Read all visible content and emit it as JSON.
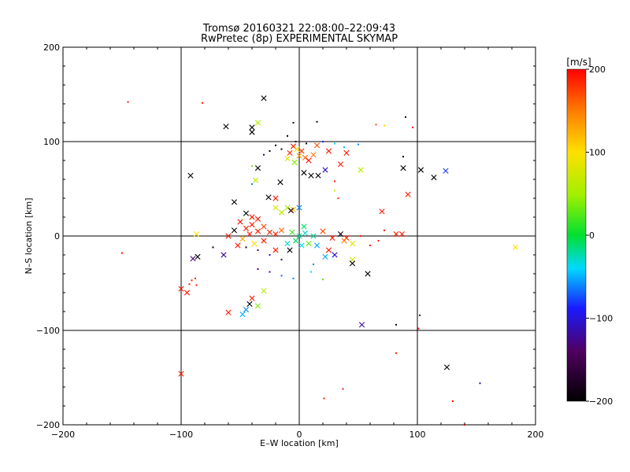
{
  "chart_data": {
    "type": "scatter",
    "title": "Tromsø 20160321 22:08:00–22:09:43",
    "subtitle": "RwPretec (8p) EXPERIMENTAL SKYMAP",
    "xlabel": "E–W location [km]",
    "ylabel": "N–S location [km]",
    "xlim": [
      -200,
      200
    ],
    "ylim": [
      -200,
      200
    ],
    "xticks": [
      -200,
      -100,
      0,
      100,
      200
    ],
    "yticks": [
      -200,
      -100,
      0,
      100,
      200
    ],
    "xtick_labels": [
      "−200",
      "−100",
      "0",
      "100",
      "200"
    ],
    "ytick_labels": [
      "−200",
      "−100",
      "0",
      "100",
      "200"
    ],
    "grid": true,
    "colorbar": {
      "label": "[m/s]",
      "range": [
        -200,
        200
      ],
      "ticks": [
        200,
        100,
        0,
        -100,
        -200
      ],
      "tick_labels": [
        "200",
        "100",
        "0",
        "−100",
        "−200"
      ],
      "colormap": "black-purple-blue-cyan-green-yellow-red"
    },
    "points": [
      {
        "x": -145,
        "y": 142,
        "v": 190,
        "m": "dot"
      },
      {
        "x": -82,
        "y": 141,
        "v": 190,
        "m": "dot"
      },
      {
        "x": -150,
        "y": -18,
        "v": 190,
        "m": "dot"
      },
      {
        "x": -30,
        "y": 146,
        "v": -200,
        "m": "x"
      },
      {
        "x": -62,
        "y": 116,
        "v": -200,
        "m": "x"
      },
      {
        "x": -40,
        "y": 115,
        "v": -200,
        "m": "x"
      },
      {
        "x": -40,
        "y": 110,
        "v": -200,
        "m": "x"
      },
      {
        "x": -35,
        "y": 120,
        "v": 60,
        "m": "x"
      },
      {
        "x": 15,
        "y": 121,
        "v": -200,
        "m": "dot"
      },
      {
        "x": -5,
        "y": 120,
        "v": -180,
        "m": "dot"
      },
      {
        "x": 65,
        "y": 118,
        "v": 170,
        "m": "dot"
      },
      {
        "x": 72,
        "y": 117,
        "v": 110,
        "m": "dot"
      },
      {
        "x": 96,
        "y": 115,
        "v": 190,
        "m": "dot"
      },
      {
        "x": 90,
        "y": 126,
        "v": -200,
        "m": "dot"
      },
      {
        "x": -10,
        "y": 106,
        "v": -200,
        "m": "dot"
      },
      {
        "x": -3,
        "y": 100,
        "v": -180,
        "m": "dot"
      },
      {
        "x": 6,
        "y": 98,
        "v": -200,
        "m": "dot"
      },
      {
        "x": -20,
        "y": 96,
        "v": -200,
        "m": "dot"
      },
      {
        "x": 20,
        "y": 100,
        "v": -90,
        "m": "dot"
      },
      {
        "x": 30,
        "y": 98,
        "v": -40,
        "m": "dot"
      },
      {
        "x": -5,
        "y": 95,
        "v": 190,
        "m": "x"
      },
      {
        "x": 15,
        "y": 96,
        "v": 170,
        "m": "x"
      },
      {
        "x": -15,
        "y": 92,
        "v": -200,
        "m": "dot"
      },
      {
        "x": 38,
        "y": 94,
        "v": -50,
        "m": "dot"
      },
      {
        "x": 50,
        "y": 97,
        "v": -60,
        "m": "dot"
      },
      {
        "x": 2,
        "y": 90,
        "v": 180,
        "m": "x"
      },
      {
        "x": -8,
        "y": 88,
        "v": 180,
        "m": "x"
      },
      {
        "x": 0,
        "y": 85,
        "v": 130,
        "m": "x"
      },
      {
        "x": 5,
        "y": 83,
        "v": 160,
        "m": "x"
      },
      {
        "x": -10,
        "y": 82,
        "v": 80,
        "m": "x"
      },
      {
        "x": 8,
        "y": 80,
        "v": 190,
        "m": "x"
      },
      {
        "x": -4,
        "y": 78,
        "v": 40,
        "m": "x"
      },
      {
        "x": 12,
        "y": 86,
        "v": 150,
        "m": "x"
      },
      {
        "x": -2,
        "y": 92,
        "v": 100,
        "m": "x"
      },
      {
        "x": 25,
        "y": 90,
        "v": 190,
        "m": "x"
      },
      {
        "x": 40,
        "y": 88,
        "v": 190,
        "m": "x"
      },
      {
        "x": -25,
        "y": 90,
        "v": -200,
        "m": "dot"
      },
      {
        "x": -30,
        "y": 86,
        "v": -150,
        "m": "dot"
      },
      {
        "x": 88,
        "y": 84,
        "v": -200,
        "m": "dot"
      },
      {
        "x": 35,
        "y": 76,
        "v": 190,
        "m": "x"
      },
      {
        "x": 22,
        "y": 70,
        "v": -110,
        "m": "x"
      },
      {
        "x": 52,
        "y": 70,
        "v": 60,
        "m": "x"
      },
      {
        "x": 88,
        "y": 72,
        "v": -200,
        "m": "x"
      },
      {
        "x": 103,
        "y": 70,
        "v": -200,
        "m": "x"
      },
      {
        "x": 124,
        "y": 69,
        "v": -80,
        "m": "x"
      },
      {
        "x": 114,
        "y": 62,
        "v": -200,
        "m": "x"
      },
      {
        "x": -92,
        "y": 64,
        "v": -200,
        "m": "x"
      },
      {
        "x": -35,
        "y": 72,
        "v": -200,
        "m": "x"
      },
      {
        "x": 10,
        "y": 64,
        "v": -200,
        "m": "x"
      },
      {
        "x": 16,
        "y": 64,
        "v": -200,
        "m": "x"
      },
      {
        "x": 4,
        "y": 67,
        "v": -200,
        "m": "x"
      },
      {
        "x": -40,
        "y": 74,
        "v": 30,
        "m": "dot"
      },
      {
        "x": -37,
        "y": 59,
        "v": 60,
        "m": "x"
      },
      {
        "x": -16,
        "y": 57,
        "v": -200,
        "m": "x"
      },
      {
        "x": 30,
        "y": 58,
        "v": 190,
        "m": "dot"
      },
      {
        "x": -40,
        "y": 55,
        "v": -60,
        "m": "dot"
      },
      {
        "x": 92,
        "y": 44,
        "v": 190,
        "m": "x"
      },
      {
        "x": -26,
        "y": 41,
        "v": -200,
        "m": "x"
      },
      {
        "x": -20,
        "y": 40,
        "v": 190,
        "m": "x"
      },
      {
        "x": -55,
        "y": 36,
        "v": -200,
        "m": "x"
      },
      {
        "x": -45,
        "y": 24,
        "v": -200,
        "m": "x"
      },
      {
        "x": 70,
        "y": 26,
        "v": 190,
        "m": "x"
      },
      {
        "x": -10,
        "y": 30,
        "v": 50,
        "m": "x"
      },
      {
        "x": -20,
        "y": 30,
        "v": 80,
        "m": "x"
      },
      {
        "x": 0,
        "y": 30,
        "v": -60,
        "m": "x"
      },
      {
        "x": -15,
        "y": 25,
        "v": 60,
        "m": "x"
      },
      {
        "x": -5,
        "y": 28,
        "v": 120,
        "m": "x"
      },
      {
        "x": -7,
        "y": 27,
        "v": -180,
        "m": "x"
      },
      {
        "x": 33,
        "y": 40,
        "v": 180,
        "m": "dot"
      },
      {
        "x": 30,
        "y": 48,
        "v": 60,
        "m": "dot"
      },
      {
        "x": -40,
        "y": 20,
        "v": 190,
        "m": "x"
      },
      {
        "x": -50,
        "y": 15,
        "v": 190,
        "m": "x"
      },
      {
        "x": -40,
        "y": 12,
        "v": 190,
        "m": "x"
      },
      {
        "x": -35,
        "y": 18,
        "v": 190,
        "m": "x"
      },
      {
        "x": -30,
        "y": 10,
        "v": 170,
        "m": "x"
      },
      {
        "x": -45,
        "y": 8,
        "v": 190,
        "m": "x"
      },
      {
        "x": -35,
        "y": 5,
        "v": 190,
        "m": "x"
      },
      {
        "x": -25,
        "y": 4,
        "v": 190,
        "m": "x"
      },
      {
        "x": -42,
        "y": 2,
        "v": 190,
        "m": "x"
      },
      {
        "x": -48,
        "y": -3,
        "v": 130,
        "m": "x"
      },
      {
        "x": -55,
        "y": 6,
        "v": -200,
        "m": "x"
      },
      {
        "x": -60,
        "y": 0,
        "v": 190,
        "m": "x"
      },
      {
        "x": -30,
        "y": -5,
        "v": 190,
        "m": "x"
      },
      {
        "x": -20,
        "y": 2,
        "v": 190,
        "m": "x"
      },
      {
        "x": -15,
        "y": 6,
        "v": 160,
        "m": "x"
      },
      {
        "x": -38,
        "y": -8,
        "v": 100,
        "m": "x"
      },
      {
        "x": -52,
        "y": -10,
        "v": 190,
        "m": "x"
      },
      {
        "x": -20,
        "y": -15,
        "v": 190,
        "m": "x"
      },
      {
        "x": -8,
        "y": -15,
        "v": -200,
        "m": "x"
      },
      {
        "x": -45,
        "y": -12,
        "v": -200,
        "m": "dot"
      },
      {
        "x": -35,
        "y": -15,
        "v": -150,
        "m": "dot"
      },
      {
        "x": -25,
        "y": -20,
        "v": -100,
        "m": "dot"
      },
      {
        "x": -15,
        "y": -25,
        "v": -150,
        "m": "dot"
      },
      {
        "x": -73,
        "y": -12,
        "v": -200,
        "m": "dot"
      },
      {
        "x": -64,
        "y": -20,
        "v": -120,
        "m": "x"
      },
      {
        "x": -90,
        "y": -24,
        "v": -130,
        "m": "x"
      },
      {
        "x": -86,
        "y": -22,
        "v": -200,
        "m": "x"
      },
      {
        "x": -87,
        "y": 2,
        "v": 100,
        "m": "x"
      },
      {
        "x": 82,
        "y": 2,
        "v": 190,
        "m": "x"
      },
      {
        "x": 87,
        "y": 2,
        "v": 190,
        "m": "x"
      },
      {
        "x": 72,
        "y": 6,
        "v": 190,
        "m": "dot"
      },
      {
        "x": 67,
        "y": -5,
        "v": 190,
        "m": "dot"
      },
      {
        "x": 60,
        "y": -10,
        "v": 190,
        "m": "dot"
      },
      {
        "x": 52,
        "y": 0,
        "v": 190,
        "m": "dot"
      },
      {
        "x": 183,
        "y": -12,
        "v": 100,
        "m": "x"
      },
      {
        "x": 28,
        "y": -2,
        "v": 190,
        "m": "x"
      },
      {
        "x": 35,
        "y": 2,
        "v": -200,
        "m": "x"
      },
      {
        "x": 40,
        "y": -2,
        "v": 190,
        "m": "x"
      },
      {
        "x": 45,
        "y": -8,
        "v": 80,
        "m": "x"
      },
      {
        "x": 38,
        "y": -5,
        "v": 150,
        "m": "x"
      },
      {
        "x": 20,
        "y": 5,
        "v": 170,
        "m": "x"
      },
      {
        "x": 25,
        "y": -15,
        "v": 190,
        "m": "x"
      },
      {
        "x": 30,
        "y": -20,
        "v": -100,
        "m": "x"
      },
      {
        "x": 0,
        "y": 0,
        "v": -20,
        "m": "x"
      },
      {
        "x": 5,
        "y": 3,
        "v": -30,
        "m": "x"
      },
      {
        "x": -3,
        "y": -5,
        "v": -10,
        "m": "x"
      },
      {
        "x": 8,
        "y": -8,
        "v": 30,
        "m": "x"
      },
      {
        "x": 2,
        "y": -10,
        "v": -40,
        "m": "x"
      },
      {
        "x": -6,
        "y": 4,
        "v": 20,
        "m": "x"
      },
      {
        "x": 12,
        "y": 0,
        "v": -20,
        "m": "x"
      },
      {
        "x": 15,
        "y": -10,
        "v": -50,
        "m": "x"
      },
      {
        "x": -10,
        "y": -8,
        "v": -30,
        "m": "x"
      },
      {
        "x": 4,
        "y": 10,
        "v": -10,
        "m": "x"
      },
      {
        "x": 45,
        "y": -25,
        "v": 80,
        "m": "x"
      },
      {
        "x": 45,
        "y": -29,
        "v": -200,
        "m": "x"
      },
      {
        "x": 58,
        "y": -40,
        "v": -200,
        "m": "x"
      },
      {
        "x": 22,
        "y": -22,
        "v": -50,
        "m": "x"
      },
      {
        "x": -35,
        "y": -35,
        "v": -140,
        "m": "dot"
      },
      {
        "x": -25,
        "y": -38,
        "v": -130,
        "m": "dot"
      },
      {
        "x": -15,
        "y": -42,
        "v": -70,
        "m": "dot"
      },
      {
        "x": -5,
        "y": -45,
        "v": -60,
        "m": "dot"
      },
      {
        "x": 10,
        "y": -38,
        "v": -40,
        "m": "dot"
      },
      {
        "x": 20,
        "y": -46,
        "v": 30,
        "m": "dot"
      },
      {
        "x": 12,
        "y": -30,
        "v": -60,
        "m": "dot"
      },
      {
        "x": -30,
        "y": -58,
        "v": 60,
        "m": "x"
      },
      {
        "x": -88,
        "y": -45,
        "v": 190,
        "m": "dot"
      },
      {
        "x": -91,
        "y": -47,
        "v": 190,
        "m": "dot"
      },
      {
        "x": -93,
        "y": -51,
        "v": 190,
        "m": "dot"
      },
      {
        "x": -87,
        "y": -52,
        "v": 190,
        "m": "dot"
      },
      {
        "x": -95,
        "y": -60,
        "v": 190,
        "m": "x"
      },
      {
        "x": -100,
        "y": -56,
        "v": 190,
        "m": "x"
      },
      {
        "x": -40,
        "y": -66,
        "v": 190,
        "m": "x"
      },
      {
        "x": -42,
        "y": -72,
        "v": -200,
        "m": "x"
      },
      {
        "x": -45,
        "y": -78,
        "v": -60,
        "m": "x"
      },
      {
        "x": -48,
        "y": -83,
        "v": -50,
        "m": "x"
      },
      {
        "x": -60,
        "y": -81,
        "v": 190,
        "m": "x"
      },
      {
        "x": -35,
        "y": -74,
        "v": 40,
        "m": "x"
      },
      {
        "x": 53,
        "y": -94,
        "v": -120,
        "m": "x"
      },
      {
        "x": 82,
        "y": -94,
        "v": -200,
        "m": "dot"
      },
      {
        "x": 102,
        "y": -84,
        "v": -150,
        "m": "dot"
      },
      {
        "x": 101,
        "y": -98,
        "v": 190,
        "m": "dot"
      },
      {
        "x": 82,
        "y": -124,
        "v": 190,
        "m": "dot"
      },
      {
        "x": -100,
        "y": -146,
        "v": 190,
        "m": "x"
      },
      {
        "x": 125,
        "y": -139,
        "v": -200,
        "m": "x"
      },
      {
        "x": 153,
        "y": -156,
        "v": -120,
        "m": "dot"
      },
      {
        "x": 37,
        "y": -162,
        "v": 190,
        "m": "dot"
      },
      {
        "x": 21,
        "y": -172,
        "v": 190,
        "m": "dot"
      },
      {
        "x": 130,
        "y": -175,
        "v": 190,
        "m": "dot"
      },
      {
        "x": 140,
        "y": -200,
        "v": 190,
        "m": "dot"
      }
    ]
  }
}
